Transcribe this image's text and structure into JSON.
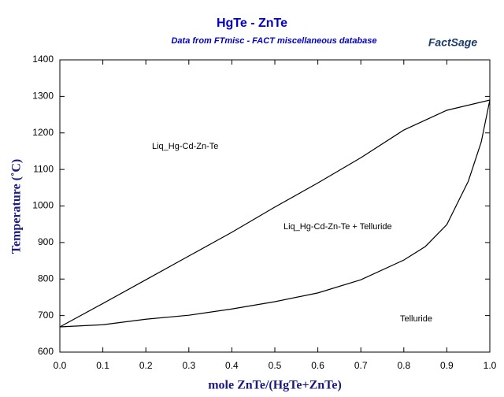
{
  "chart_data": {
    "type": "line",
    "title": "HgTe - ZnTe",
    "subtitle": "Data from FTmisc - FACT miscellaneous database",
    "logo": "FactSage",
    "x_label": "mole ZnTe/(HgTe+ZnTe)",
    "y_label": "Temperature (˚C)",
    "annotations": [
      "Liq_Hg-Cd-Zn-Te",
      "Liq_Hg-Cd-Zn-Te + Telluride",
      "Telluride"
    ],
    "series": [
      {
        "color": "#000000",
        "x": [
          0,
          0.1,
          0.2,
          0.3,
          0.4,
          0.5,
          0.6,
          0.7,
          0.8,
          0.9,
          1.0
        ],
        "values": [
          669,
          733,
          798,
          863,
          928,
          997,
          1063,
          1132,
          1208,
          1262,
          1290
        ]
      },
      {
        "color": "#000000",
        "x": [
          0,
          0.1,
          0.2,
          0.3,
          0.4,
          0.5,
          0.6,
          0.7,
          0.8,
          0.85,
          0.9,
          0.95,
          0.98,
          1.0
        ],
        "values": [
          669,
          675,
          690,
          701,
          718,
          738,
          762,
          798,
          852,
          889,
          949,
          1068,
          1175,
          1290
        ]
      }
    ],
    "xlim": [
      0,
      1
    ],
    "xticks": [
      {
        "value": 0,
        "label": "0.0"
      },
      0.1,
      0.2,
      0.3,
      0.4,
      0.5,
      0.6,
      0.7,
      0.8,
      0.9,
      {
        "value": 1,
        "label": "1.0"
      }
    ],
    "ylim": [
      600,
      1400
    ],
    "yticks": [
      600,
      700,
      800,
      900,
      1000,
      1100,
      1200,
      1300,
      1400
    ]
  }
}
